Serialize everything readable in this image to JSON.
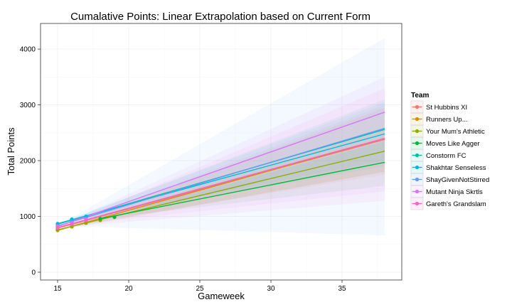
{
  "chart_data": {
    "type": "line",
    "title": "Cumalative Points: Linear Extrapolation based on Current Form",
    "xlabel": "Gameweek",
    "ylabel": "Total Points",
    "xlim": [
      13.8,
      39.2
    ],
    "ylim": [
      -140,
      4460
    ],
    "x_ticks": [
      15,
      20,
      25,
      30,
      35
    ],
    "y_ticks": [
      0,
      1000,
      2000,
      3000,
      4000
    ],
    "grid": true,
    "legend": {
      "title": "Team",
      "position": "right"
    },
    "series": [
      {
        "name": "St Hubbins XI",
        "color": "#F8766D",
        "points_x": [
          15,
          16,
          17
        ],
        "points_y": [
          790,
          860,
          930
        ],
        "line_x": [
          15,
          38
        ],
        "line_y": [
          790,
          2380
        ],
        "band_low": 1750,
        "band_high": 3000,
        "band_start": 15
      },
      {
        "name": "Runners Up...",
        "color": "#D39200",
        "points_x": [
          15,
          16,
          17,
          18
        ],
        "points_y": [
          750,
          820,
          890,
          950
        ],
        "line_x": [
          15,
          38
        ],
        "line_y": [
          750,
          2400
        ],
        "band_low": 1800,
        "band_high": 2950,
        "band_start": 15
      },
      {
        "name": "Your Mum's Athletic",
        "color": "#93AA00",
        "points_x": [
          15,
          16,
          17,
          18,
          19
        ],
        "points_y": [
          760,
          815,
          880,
          930,
          985
        ],
        "line_x": [
          15,
          38
        ],
        "line_y": [
          760,
          2170
        ],
        "band_low": 1800,
        "band_high": 2550,
        "band_start": 15
      },
      {
        "name": "Moves Like Agger",
        "color": "#00BA38",
        "points_x": [
          18,
          19
        ],
        "points_y": [
          960,
          990
        ],
        "line_x": [
          18,
          38
        ],
        "line_y": [
          960,
          1970
        ],
        "band_low": 1550,
        "band_high": 2350,
        "band_start": 18
      },
      {
        "name": "Constorm FC",
        "color": "#00C19F",
        "points_x": [
          15,
          16,
          17
        ],
        "points_y": [
          860,
          930,
          990
        ],
        "line_x": [
          15,
          38
        ],
        "line_y": [
          860,
          2560
        ],
        "band_low": 2000,
        "band_high": 3100,
        "band_start": 15
      },
      {
        "name": "Shakhtar Senseless",
        "color": "#00B9E3",
        "points_x": [
          15,
          16,
          17
        ],
        "points_y": [
          870,
          950,
          1000
        ],
        "line_x": [
          15,
          38
        ],
        "line_y": [
          870,
          2480
        ],
        "band_low": 1900,
        "band_high": 3050,
        "band_start": 15
      },
      {
        "name": "ShayGivenNotStirred",
        "color": "#619CFF",
        "points_x": [
          15,
          16,
          17
        ],
        "points_y": [
          830,
          900,
          960
        ],
        "line_x": [
          15,
          38
        ],
        "line_y": [
          830,
          2580
        ],
        "band_low": 660,
        "band_high": 4200,
        "band_start": 15
      },
      {
        "name": "Mutant Ninja Skrtls",
        "color": "#DB72FB",
        "points_x": [
          15,
          16,
          17
        ],
        "points_y": [
          820,
          880,
          950
        ],
        "line_x": [
          15,
          38
        ],
        "line_y": [
          820,
          2870
        ],
        "band_low": 1450,
        "band_high": 3500,
        "band_start": 15
      },
      {
        "name": "Gareth's Grandslam",
        "color": "#FF61C3",
        "points_x": [
          15,
          16,
          17
        ],
        "points_y": [
          800,
          860,
          930
        ],
        "line_x": [
          15,
          38
        ],
        "line_y": [
          800,
          2400
        ],
        "band_low": 1280,
        "band_high": 3300,
        "band_start": 15
      }
    ]
  }
}
